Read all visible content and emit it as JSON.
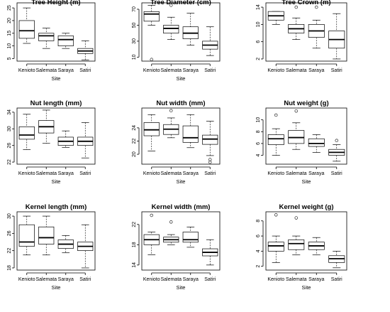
{
  "chart_data": [
    {
      "type": "boxplot",
      "title": "Tree Height (m)",
      "xlabel": "Site",
      "categories": [
        "Kenioto",
        "Salemata",
        "Saraya",
        "Satiri"
      ],
      "ylim": [
        4,
        27
      ],
      "yticks": [
        5,
        10,
        15,
        20,
        25
      ],
      "boxes": [
        {
          "min": 11,
          "q1": 13,
          "median": 16,
          "q3": 20,
          "max": 25,
          "outliers": []
        },
        {
          "min": 9,
          "q1": 12,
          "median": 14,
          "q3": 15,
          "max": 17,
          "outliers": []
        },
        {
          "min": 9,
          "q1": 10,
          "median": 12.5,
          "q3": 14,
          "max": 15,
          "outliers": []
        },
        {
          "min": 4.5,
          "q1": 7,
          "median": 8,
          "q3": 9,
          "max": 12,
          "outliers": []
        }
      ]
    },
    {
      "type": "boxplot",
      "title": "Tree Diameter (cm)",
      "xlabel": "Site",
      "categories": [
        "Kenioto",
        "Salemata",
        "Saraya",
        "Satiri"
      ],
      "ylim": [
        5,
        78
      ],
      "yticks": [
        10,
        30,
        50,
        70
      ],
      "boxes": [
        {
          "min": 50,
          "q1": 55,
          "median": 64,
          "q3": 67,
          "max": 75,
          "outliers": [
            7
          ]
        },
        {
          "min": 32,
          "q1": 40,
          "median": 46,
          "q3": 50,
          "max": 60,
          "outliers": [
            75
          ]
        },
        {
          "min": 25,
          "q1": 33,
          "median": 40,
          "q3": 48,
          "max": 65,
          "outliers": []
        },
        {
          "min": 12,
          "q1": 20,
          "median": 25,
          "q3": 30,
          "max": 48,
          "outliers": []
        }
      ]
    },
    {
      "type": "boxplot",
      "title": "Tree Crown (m)",
      "xlabel": "",
      "categories": [
        "Kenioto",
        "Salemata",
        "Saraya",
        "Satiri"
      ],
      "ylim": [
        1.5,
        15
      ],
      "yticks": [
        2,
        6,
        10,
        14
      ],
      "boxes": [
        {
          "min": 10,
          "q1": 11,
          "median": 12,
          "q3": 13,
          "max": 13,
          "outliers": []
        },
        {
          "min": 6.5,
          "q1": 8,
          "median": 9,
          "q3": 10,
          "max": 11.5,
          "outliers": [
            14
          ]
        },
        {
          "min": 4.5,
          "q1": 7,
          "median": 8.5,
          "q3": 10,
          "max": 11,
          "outliers": [
            14
          ]
        },
        {
          "min": 2,
          "q1": 4.5,
          "median": 6.5,
          "q3": 8.5,
          "max": 12.5,
          "outliers": []
        }
      ]
    },
    {
      "type": "boxplot",
      "title": "Nut length (mm)",
      "xlabel": "Site",
      "categories": [
        "Kenioto",
        "Salemata",
        "Saraya",
        "Satiri"
      ],
      "ylim": [
        21.5,
        35
      ],
      "yticks": [
        22,
        26,
        30,
        34
      ],
      "boxes": [
        {
          "min": 25,
          "q1": 27.5,
          "median": 28.5,
          "q3": 30.5,
          "max": 33.5,
          "outliers": []
        },
        {
          "min": 26.5,
          "q1": 29,
          "median": 30.5,
          "q3": 32,
          "max": 34.5,
          "outliers": []
        },
        {
          "min": 25.5,
          "q1": 26,
          "median": 27,
          "q3": 28,
          "max": 29.5,
          "outliers": []
        },
        {
          "min": 23,
          "q1": 26,
          "median": 27,
          "q3": 28,
          "max": 31.5,
          "outliers": []
        }
      ]
    },
    {
      "type": "boxplot",
      "title": "Nut width (mm)",
      "xlabel": "Site",
      "categories": [
        "Kenioto",
        "Salemata",
        "Saraya",
        "Satiri"
      ],
      "ylim": [
        18.5,
        27
      ],
      "yticks": [
        20,
        22,
        24
      ],
      "boxes": [
        {
          "min": 20.5,
          "q1": 22.8,
          "median": 23.7,
          "q3": 24.8,
          "max": 26,
          "outliers": []
        },
        {
          "min": 22.5,
          "q1": 23,
          "median": 23.8,
          "q3": 24.5,
          "max": 25.5,
          "outliers": [
            26.6
          ]
        },
        {
          "min": 21,
          "q1": 21.8,
          "median": 22.5,
          "q3": 24.3,
          "max": 26,
          "outliers": []
        },
        {
          "min": 19.8,
          "q1": 21.5,
          "median": 22.3,
          "q3": 22.9,
          "max": 25,
          "outliers": [
            19.2,
            18.8
          ]
        }
      ]
    },
    {
      "type": "boxplot",
      "title": "Nut weight (g)",
      "xlabel": "Site",
      "categories": [
        "Kenioto",
        "Salemata",
        "Saraya",
        "Satiri"
      ],
      "ylim": [
        2.5,
        12
      ],
      "yticks": [
        4,
        6,
        8,
        10
      ],
      "boxes": [
        {
          "min": 4,
          "q1": 5.8,
          "median": 6.8,
          "q3": 7.5,
          "max": 8.5,
          "outliers": [
            10.8
          ]
        },
        {
          "min": 5,
          "q1": 6,
          "median": 7,
          "q3": 8.2,
          "max": 9.5,
          "outliers": [
            11.5
          ]
        },
        {
          "min": 4.5,
          "q1": 5.5,
          "median": 6,
          "q3": 6.8,
          "max": 7.5,
          "outliers": []
        },
        {
          "min": 3,
          "q1": 4,
          "median": 4.5,
          "q3": 5,
          "max": 5.8,
          "outliers": [
            6.5
          ]
        }
      ]
    },
    {
      "type": "boxplot",
      "title": "Kernel length (mm)",
      "xlabel": "Site",
      "categories": [
        "Kenioto",
        "Salemata",
        "Saraya",
        "Satiri"
      ],
      "ylim": [
        17.5,
        31
      ],
      "yticks": [
        18,
        22,
        26,
        30
      ],
      "boxes": [
        {
          "min": 21,
          "q1": 23,
          "median": 24,
          "q3": 28,
          "max": 30,
          "outliers": []
        },
        {
          "min": 21,
          "q1": 23.5,
          "median": 25,
          "q3": 27.5,
          "max": 30,
          "outliers": []
        },
        {
          "min": 21.5,
          "q1": 22.5,
          "median": 23.5,
          "q3": 24.5,
          "max": 25.5,
          "outliers": []
        },
        {
          "min": 18,
          "q1": 22,
          "median": 23,
          "q3": 24,
          "max": 28,
          "outliers": []
        }
      ]
    },
    {
      "type": "boxplot",
      "title": "Kernel width (mm)",
      "xlabel": "Site",
      "categories": [
        "Kenioto",
        "Salemata",
        "Saraya",
        "Satiri"
      ],
      "ylim": [
        13,
        24.5
      ],
      "yticks": [
        14,
        18,
        22
      ],
      "boxes": [
        {
          "min": 16,
          "q1": 18,
          "median": 19,
          "q3": 20,
          "max": 20.5,
          "outliers": [
            23.8
          ]
        },
        {
          "min": 18,
          "q1": 18.5,
          "median": 19,
          "q3": 19.5,
          "max": 20,
          "outliers": [
            22.5
          ]
        },
        {
          "min": 17.5,
          "q1": 18.5,
          "median": 19,
          "q3": 20.5,
          "max": 21.5,
          "outliers": []
        },
        {
          "min": 14,
          "q1": 15.8,
          "median": 16.5,
          "q3": 17.2,
          "max": 19,
          "outliers": []
        }
      ]
    },
    {
      "type": "boxplot",
      "title": "Kernel weight (g)",
      "xlabel": "Site",
      "categories": [
        "Kenioto",
        "Salemata",
        "Saraya",
        "Satiri"
      ],
      "ylim": [
        1.5,
        9.2
      ],
      "yticks": [
        2,
        4,
        6,
        8
      ],
      "boxes": [
        {
          "min": 2.5,
          "q1": 4,
          "median": 4.7,
          "q3": 5.2,
          "max": 6,
          "outliers": [
            8.8
          ]
        },
        {
          "min": 3.5,
          "q1": 4.2,
          "median": 5,
          "q3": 5.5,
          "max": 6,
          "outliers": [
            8.4
          ]
        },
        {
          "min": 3.5,
          "q1": 4.2,
          "median": 4.7,
          "q3": 5.2,
          "max": 5.8,
          "outliers": []
        },
        {
          "min": 1.8,
          "q1": 2.5,
          "median": 3,
          "q3": 3.4,
          "max": 4,
          "outliers": []
        }
      ]
    }
  ]
}
